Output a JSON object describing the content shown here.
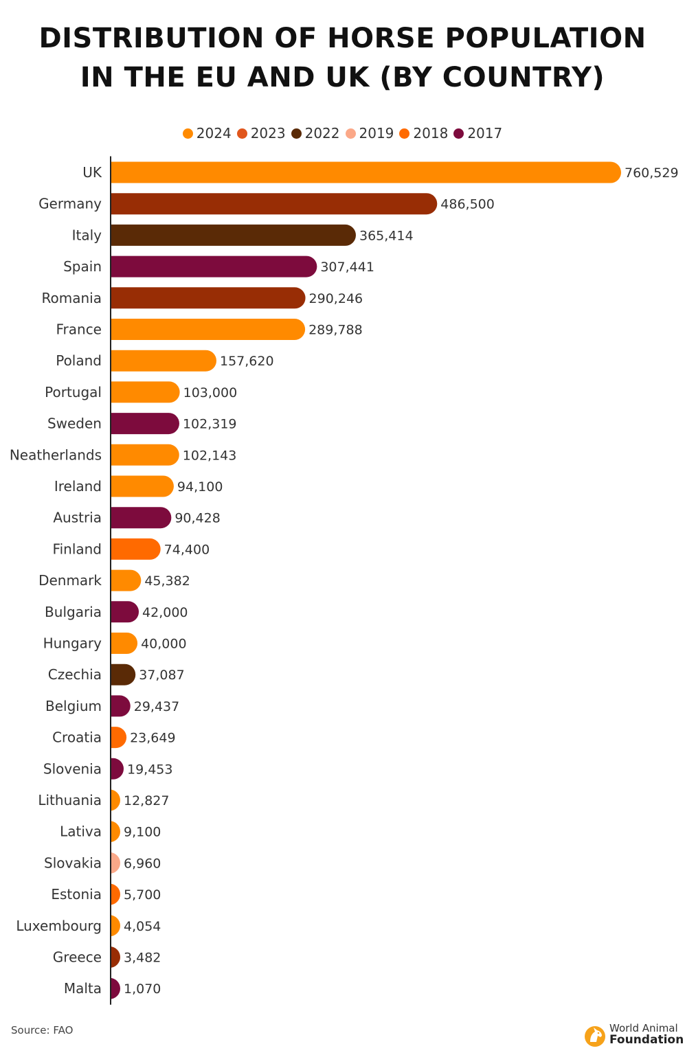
{
  "title_line1": "DISTRIBUTION OF HORSE POPULATION",
  "title_line2": "IN THE EU AND UK (BY COUNTRY)",
  "legend": [
    {
      "label": "2024",
      "color": "#FF8A00"
    },
    {
      "label": "2023",
      "color": "#E0561C"
    },
    {
      "label": "2022",
      "color": "#5A2A06"
    },
    {
      "label": "2019",
      "color": "#FBA888"
    },
    {
      "label": "2018",
      "color": "#FF6A00"
    },
    {
      "label": "2017",
      "color": "#7D0B3D"
    }
  ],
  "source": "Source: FAO",
  "brand": {
    "line1": "World Animal",
    "line2": "Foundation",
    "icon": "horse-head-logo-icon"
  },
  "chart_data": {
    "type": "bar",
    "orientation": "horizontal",
    "categories": [
      "UK",
      "Germany",
      "Italy",
      "Spain",
      "Romania",
      "France",
      "Poland",
      "Portugal",
      "Sweden",
      "Neatherlands",
      "Ireland",
      "Austria",
      "Finland",
      "Denmark",
      "Bulgaria",
      "Hungary",
      "Czechia",
      "Belgium",
      "Croatia",
      "Slovenia",
      "Lithuania",
      "Lativa",
      "Slovakia",
      "Estonia",
      "Luxembourg",
      "Greece",
      "Malta"
    ],
    "values": [
      760529,
      486500,
      365414,
      307441,
      290246,
      289788,
      157620,
      103000,
      102319,
      102143,
      94100,
      90428,
      74400,
      45382,
      42000,
      40000,
      37087,
      29437,
      23649,
      19453,
      12827,
      9100,
      6960,
      5700,
      4054,
      3482,
      1070
    ],
    "value_labels": [
      "760,529",
      "486,500",
      "365,414",
      "307,441",
      "290,246",
      "289,788",
      "157,620",
      "103,000",
      "102,319",
      "102,143",
      "94,100",
      "90,428",
      "74,400",
      "45,382",
      "42,000",
      "40,000",
      "37,087",
      "29,437",
      "23,649",
      "19,453",
      "12,827",
      "9,100",
      "6,960",
      "5,700",
      "4,054",
      "3,482",
      "1,070"
    ],
    "years": [
      "2024",
      "2023",
      "2022",
      "2017",
      "2023",
      "2024",
      "2024",
      "2024",
      "2017",
      "2024",
      "2024",
      "2017",
      "2018",
      "2024",
      "2017",
      "2024",
      "2022",
      "2017",
      "2018",
      "2017",
      "2024",
      "2024",
      "2019",
      "2018",
      "2024",
      "2023",
      "2017"
    ],
    "bar_colors": {
      "2024": "#FF8A00",
      "2023": "#982D05",
      "2022": "#5A2A06",
      "2019": "#FBA888",
      "2018": "#FF6A00",
      "2017": "#7D0B3D"
    },
    "axis_line_color": "#222222",
    "grid": false,
    "legend_position": "top-center"
  }
}
